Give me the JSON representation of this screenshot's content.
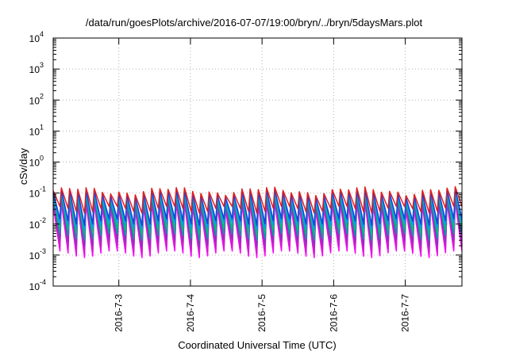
{
  "chart_data": {
    "type": "line",
    "title": "/data/run/goesPlots/archive/2016-07-07/19:00/bryn/../bryn/5daysMars.plot",
    "xlabel": "Coordinated Universal Time (UTC)",
    "ylabel": "cSv/day",
    "y_scale": "log",
    "ylim": [
      0.0001,
      10000
    ],
    "y_ticks": [
      {
        "base": "10",
        "exp": "-4",
        "value": 0.0001
      },
      {
        "base": "10",
        "exp": "-3",
        "value": 0.001
      },
      {
        "base": "10",
        "exp": "-2",
        "value": 0.01
      },
      {
        "base": "10",
        "exp": "-1",
        "value": 0.1
      },
      {
        "base": "10",
        "exp": "0",
        "value": 1
      },
      {
        "base": "10",
        "exp": "1",
        "value": 10
      },
      {
        "base": "10",
        "exp": "2",
        "value": 100
      },
      {
        "base": "10",
        "exp": "3",
        "value": 1000
      },
      {
        "base": "10",
        "exp": "4",
        "value": 10000
      }
    ],
    "x_range": [
      "2016-07-02T02:00",
      "2016-07-07T19:00"
    ],
    "x_ticks": [
      "2016-7-3",
      "2016-7-4",
      "2016-7-5",
      "2016-7-6",
      "2016-7-7"
    ],
    "grid": true,
    "legend": "none",
    "pattern": {
      "period_hours": 2.75,
      "first_peak": "2016-07-02T02:00"
    },
    "series": [
      {
        "color": "#ff00ff",
        "peak": 0.04,
        "trough": 0.0011
      },
      {
        "color": "#cc1fcc",
        "peak": 0.05,
        "trough": 0.0015
      },
      {
        "color": "#8f2fbf",
        "peak": 0.06,
        "trough": 0.0025
      },
      {
        "color": "#00a0a0",
        "peak": 0.075,
        "trough": 0.004
      },
      {
        "color": "#00c07a",
        "peak": 0.08,
        "trough": 0.006
      },
      {
        "color": "#0099ff",
        "peak": 0.09,
        "trough": 0.009
      },
      {
        "color": "#1e3fdc",
        "peak": 0.105,
        "trough": 0.012
      },
      {
        "color": "#e02020",
        "peak": 0.12,
        "trough": 0.03
      }
    ]
  }
}
